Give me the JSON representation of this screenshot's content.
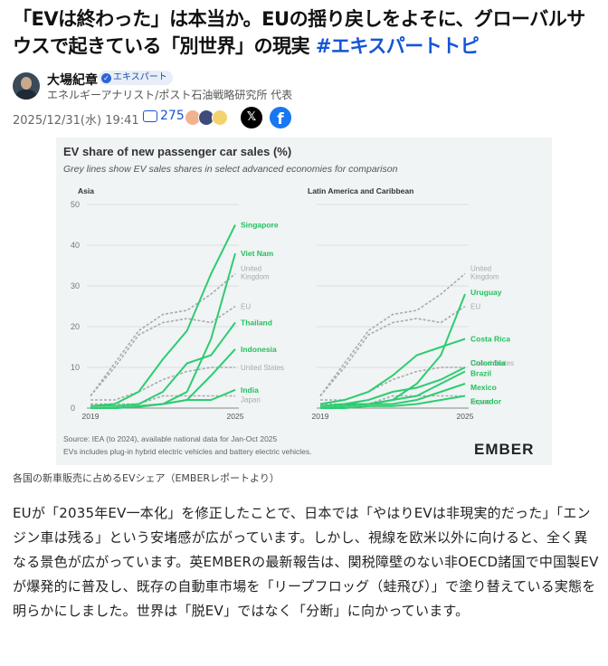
{
  "article": {
    "title": "「EVは終わった」は本当か。EUの揺り戻しをよそに、グローバルサウスで起きている「別世界」の現実",
    "title_tag": "#エキスパートトピ",
    "author_name": "大場紀章",
    "author_badge": "エキスパート",
    "author_desc": "エネルギーアナリスト/ポスト石油戦略研究所 代表",
    "date": "2025/12/31(水) 19:41",
    "comment_count": "275",
    "share_x_label": "𝕏",
    "share_fb_label": "f",
    "caption": "各国の新車販売に占めるEVシェア（EMBERレポートより）",
    "body": "EUが「2035年EV一本化」を修正したことで、日本では「やはりEVは非現実的だった」「エンジン車は残る」という安堵感が広がっています。しかし、視線を欧米以外に向けると、全く異なる景色が広がっています。英EMBERの最新報告は、関税障壁のない非OECD諸国で中国製EVが爆発的に普及し、既存の自動車市場を「リープフロッグ（蛙飛び）」で塗り替えている実態を明らかにしました。世界は「脱EV」ではなく「分断」に向かっています。"
  },
  "chart_data": {
    "type": "line",
    "title": "EV share of new passenger car sales (%)",
    "subtitle": "Grey lines show EV sales shares in select advanced economies for comparison",
    "source": "Source: IEA (to 2024), available national data for Jan-Oct 2025",
    "note": "EVs includes plug-in hybrid electric vehicles and battery electric vehicles.",
    "brand": "EMBER",
    "ylim": [
      0,
      50
    ],
    "yticks": [
      "0",
      "10",
      "20",
      "30",
      "40",
      "50"
    ],
    "x": [
      2019,
      2020,
      2021,
      2022,
      2023,
      2024,
      2025
    ],
    "xtick_labels": [
      "2019",
      "2025"
    ],
    "colors": {
      "green": "#2ecc71",
      "grey": "#aaaaaa",
      "label_green": "#23c05f",
      "label_grey": "#aaaaaa"
    },
    "panels": [
      {
        "name": "Asia",
        "series": [
          {
            "name": "Singapore",
            "kind": "green",
            "values": [
              0.5,
              1,
              4,
              12,
              19,
              33,
              45
            ]
          },
          {
            "name": "Viet Nam",
            "kind": "green",
            "values": [
              0,
              0,
              0.5,
              1,
              4,
              17,
              38
            ]
          },
          {
            "name": "Thailand",
            "kind": "green",
            "values": [
              0.5,
              0.5,
              1,
              4,
              11,
              13,
              21
            ]
          },
          {
            "name": "Indonesia",
            "kind": "green",
            "values": [
              0,
              0,
              0.5,
              1,
              2,
              8,
              14.5
            ]
          },
          {
            "name": "India",
            "kind": "green",
            "values": [
              0,
              0,
              0.3,
              1,
              2,
              2,
              4.5
            ]
          },
          {
            "name": "United Kingdom",
            "kind": "grey",
            "values": [
              3,
              11,
              19,
              23,
              24,
              28,
              33
            ]
          },
          {
            "name": "EU",
            "kind": "grey",
            "values": [
              3,
              10,
              18,
              21,
              22,
              21,
              25
            ]
          },
          {
            "name": "United States",
            "kind": "grey",
            "values": [
              2,
              2,
              4,
              7,
              9,
              10,
              10
            ]
          },
          {
            "name": "Japan",
            "kind": "grey",
            "values": [
              1,
              1,
              1,
              3,
              3,
              3,
              3
            ]
          }
        ]
      },
      {
        "name": "Latin America and Caribbean",
        "series": [
          {
            "name": "Uruguay",
            "kind": "green",
            "values": [
              0.5,
              1,
              1,
              2,
              6,
              13,
              28
            ]
          },
          {
            "name": "Costa Rica",
            "kind": "green",
            "values": [
              1,
              2,
              4,
              8,
              13,
              15,
              17
            ]
          },
          {
            "name": "Colombia",
            "kind": "green",
            "values": [
              0.5,
              1,
              2,
              4,
              5,
              7,
              10
            ]
          },
          {
            "name": "Brazil",
            "kind": "green",
            "values": [
              0,
              0.5,
              1,
              2,
              3,
              6,
              9
            ]
          },
          {
            "name": "Mexico",
            "kind": "green",
            "values": [
              0,
              0.5,
              1,
              1,
              2,
              4,
              6
            ]
          },
          {
            "name": "Ecuador",
            "kind": "green",
            "values": [
              0,
              0,
              0.5,
              0.5,
              1,
              2,
              3
            ]
          },
          {
            "name": "United Kingdom",
            "kind": "grey",
            "values": [
              3,
              11,
              19,
              23,
              24,
              28,
              33
            ]
          },
          {
            "name": "EU",
            "kind": "grey",
            "values": [
              3,
              10,
              18,
              21,
              22,
              21,
              25
            ]
          },
          {
            "name": "United States",
            "kind": "grey",
            "values": [
              2,
              2,
              4,
              7,
              9,
              10,
              10
            ]
          },
          {
            "name": "Japan",
            "kind": "grey",
            "values": [
              1,
              1,
              1,
              3,
              3,
              3,
              3
            ]
          }
        ]
      }
    ]
  }
}
